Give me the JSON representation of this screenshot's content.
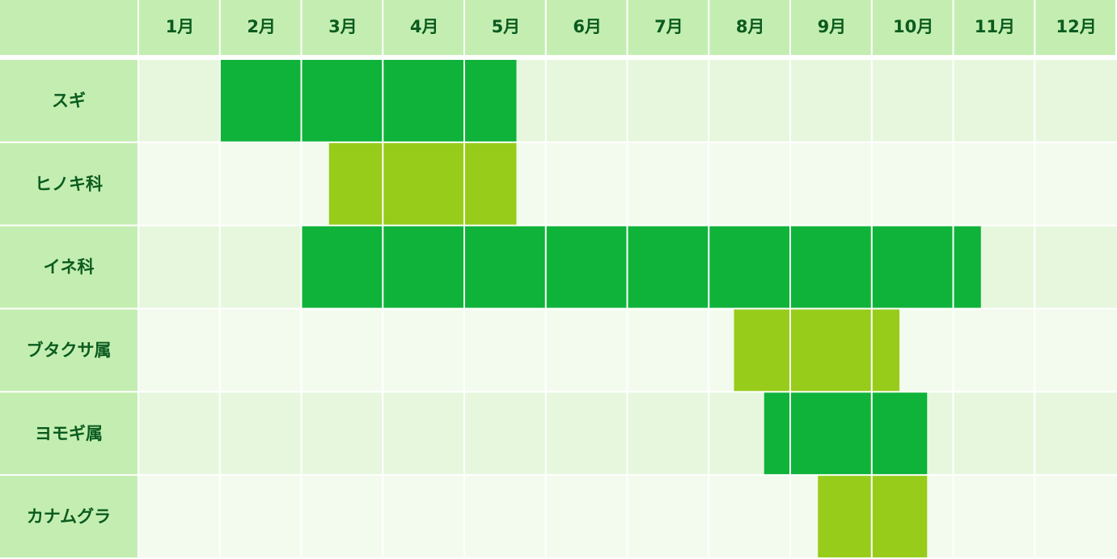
{
  "chart_data": {
    "type": "gantt",
    "categories": [
      "1月",
      "2月",
      "3月",
      "4月",
      "5月",
      "6月",
      "7月",
      "8月",
      "9月",
      "10月",
      "11月",
      "12月"
    ],
    "xlim": [
      1,
      13
    ],
    "rows": [
      {
        "name": "スギ",
        "color": "#0fb33a",
        "start": 2,
        "end": 5.63
      },
      {
        "name": "ヒノキ科",
        "color": "#97cc1a",
        "start": 3.33,
        "end": 5.63
      },
      {
        "name": "イネ科",
        "color": "#0fb33a",
        "start": 3,
        "end": 11.33
      },
      {
        "name": "ブタクサ属",
        "color": "#97cc1a",
        "start": 8.3,
        "end": 10.33
      },
      {
        "name": "ヨモギ属",
        "color": "#0fb33a",
        "start": 8.67,
        "end": 10.67
      },
      {
        "name": "カナムグラ",
        "color": "#97cc1a",
        "start": 9.33,
        "end": 10.67
      }
    ]
  }
}
